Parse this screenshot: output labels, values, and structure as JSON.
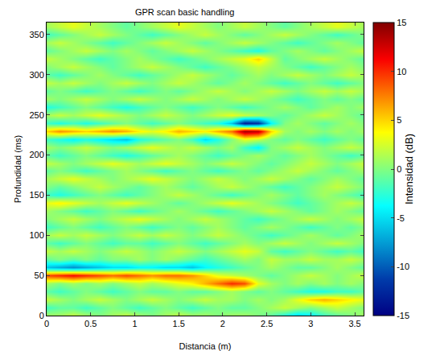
{
  "chart_data": {
    "type": "heatmap",
    "title": "GPR scan basic handling",
    "x_label": "Distancia (m)",
    "y_label": "Profundidad (ms)",
    "color": "Jet",
    "xlim": [
      0,
      3.6
    ],
    "ylim": [
      0,
      365
    ],
    "xticks": [
      0,
      0.5,
      1,
      1.5,
      2,
      2.5,
      3,
      3.5
    ],
    "yticks": [
      0,
      50,
      100,
      150,
      200,
      250,
      300,
      350
    ],
    "colorbar": {
      "title": "Intensidad (dB)",
      "range": [
        -15,
        15
      ],
      "ticks": [
        -15,
        -10,
        -5,
        0,
        5,
        10,
        15
      ]
    },
    "x": [
      0,
      0.15,
      0.3,
      0.45,
      0.6,
      0.75,
      0.9,
      1.05,
      1.2,
      1.35,
      1.5,
      1.65,
      1.8,
      1.95,
      2.1,
      2.25,
      2.4,
      2.55,
      2.7,
      2.85,
      3.0,
      3.15,
      3.3,
      3.45,
      3.6
    ],
    "y": [
      0,
      10,
      20,
      30,
      40,
      50,
      60,
      70,
      80,
      90,
      100,
      110,
      120,
      130,
      140,
      150,
      160,
      170,
      180,
      190,
      200,
      210,
      220,
      230,
      240,
      250,
      260,
      270,
      280,
      290,
      300,
      310,
      320,
      330,
      340,
      350,
      360
    ],
    "z": [
      [
        1,
        1,
        2,
        1,
        0,
        1,
        2,
        1,
        0,
        1,
        2,
        1,
        1,
        0,
        1,
        1,
        0,
        -1,
        -3,
        -5,
        -4,
        -2,
        -1,
        0,
        1
      ],
      [
        -2,
        -1,
        -1,
        -2,
        -1,
        0,
        -1,
        -2,
        -1,
        0,
        -1,
        -2,
        -1,
        0,
        -1,
        -1,
        0,
        1,
        2,
        1,
        0,
        1,
        2,
        1,
        0
      ],
      [
        2,
        1,
        0,
        1,
        2,
        1,
        0,
        1,
        2,
        1,
        0,
        1,
        2,
        1,
        1,
        0,
        1,
        0,
        1,
        3,
        5,
        6,
        5,
        4,
        3
      ],
      [
        -1,
        -2,
        -1,
        0,
        -1,
        -2,
        -1,
        0,
        -1,
        -1,
        0,
        -1,
        -1,
        0,
        1,
        0,
        -1,
        0,
        -1,
        -2,
        -3,
        -3,
        -2,
        -2,
        -1
      ],
      [
        1,
        0,
        1,
        0,
        1,
        0,
        1,
        2,
        1,
        2,
        3,
        4,
        6,
        8,
        10,
        9,
        3,
        1,
        0,
        1,
        0,
        1,
        0,
        1,
        0
      ],
      [
        9,
        10,
        11,
        10,
        9,
        8,
        9,
        8,
        7,
        8,
        8,
        7,
        5,
        3,
        2,
        1,
        0,
        -1,
        0,
        1,
        2,
        1,
        0,
        1,
        2
      ],
      [
        -6,
        -7,
        -8,
        -7,
        -6,
        -5,
        -5,
        -4,
        -4,
        -5,
        -5,
        -6,
        -4,
        -3,
        -2,
        -1,
        0,
        1,
        0,
        -1,
        -1,
        0,
        1,
        0,
        -1
      ],
      [
        -1,
        0,
        -1,
        0,
        -1,
        0,
        0,
        1,
        0,
        1,
        0,
        -1,
        -2,
        -1,
        0,
        1,
        0,
        2,
        1,
        1,
        2,
        1,
        1,
        2,
        1
      ],
      [
        2,
        1,
        2,
        1,
        0,
        1,
        2,
        1,
        0,
        1,
        2,
        1,
        0,
        1,
        2,
        3,
        2,
        -1,
        -2,
        -1,
        0,
        -1,
        -2,
        -1,
        -2
      ],
      [
        -1,
        -2,
        -1,
        0,
        -1,
        -2,
        -1,
        -1,
        -2,
        -1,
        0,
        -1,
        -2,
        -1,
        0,
        1,
        0,
        1,
        2,
        1,
        0,
        1,
        2,
        1,
        0
      ],
      [
        1,
        2,
        1,
        2,
        1,
        0,
        1,
        2,
        1,
        2,
        1,
        0,
        1,
        2,
        1,
        0,
        -1,
        -2,
        -1,
        0,
        1,
        0,
        -1,
        0,
        1
      ],
      [
        -2,
        -1,
        0,
        -1,
        -2,
        -1,
        0,
        -1,
        -2,
        -1,
        0,
        -1,
        0,
        1,
        0,
        -1,
        0,
        1,
        0,
        -1,
        -2,
        -1,
        0,
        -1,
        0
      ],
      [
        0,
        1,
        2,
        1,
        0,
        1,
        2,
        3,
        2,
        1,
        0,
        1,
        2,
        1,
        0,
        -1,
        -2,
        -1,
        0,
        1,
        2,
        1,
        0,
        1,
        2
      ],
      [
        1,
        0,
        -1,
        -2,
        -1,
        0,
        -1,
        -2,
        -1,
        0,
        1,
        0,
        -1,
        -2,
        -1,
        0,
        1,
        2,
        1,
        0,
        -1,
        0,
        1,
        0,
        -1
      ],
      [
        3,
        4,
        3,
        2,
        1,
        2,
        3,
        2,
        1,
        0,
        -1,
        0,
        1,
        2,
        3,
        2,
        1,
        0,
        -1,
        -2,
        -1,
        0,
        1,
        2,
        1
      ],
      [
        -2,
        -3,
        -2,
        -1,
        0,
        -1,
        -2,
        -1,
        0,
        1,
        2,
        1,
        0,
        -1,
        -2,
        -1,
        0,
        1,
        0,
        -1,
        0,
        1,
        0,
        -1,
        -2
      ],
      [
        0,
        -1,
        0,
        1,
        2,
        1,
        0,
        -1,
        0,
        1,
        0,
        -1,
        0,
        1,
        2,
        1,
        0,
        -1,
        -2,
        -1,
        0,
        1,
        2,
        1,
        0
      ],
      [
        1,
        2,
        3,
        2,
        1,
        0,
        1,
        2,
        3,
        2,
        1,
        0,
        1,
        2,
        1,
        0,
        1,
        2,
        1,
        0,
        -1,
        0,
        1,
        0,
        -1
      ],
      [
        -1,
        0,
        -1,
        -2,
        -1,
        0,
        1,
        0,
        -1,
        -2,
        -1,
        0,
        -1,
        -2,
        -1,
        0,
        -1,
        0,
        1,
        2,
        1,
        0,
        -1,
        0,
        1
      ],
      [
        2,
        1,
        0,
        1,
        2,
        3,
        2,
        1,
        2,
        3,
        2,
        1,
        0,
        1,
        2,
        1,
        0,
        -1,
        0,
        1,
        2,
        1,
        0,
        1,
        2
      ],
      [
        -1,
        -2,
        -1,
        0,
        -1,
        -2,
        -3,
        -2,
        -1,
        0,
        1,
        0,
        -1,
        -2,
        -1,
        0,
        1,
        0,
        -1,
        0,
        1,
        0,
        -1,
        -2,
        -1
      ],
      [
        1,
        0,
        1,
        2,
        1,
        0,
        1,
        2,
        3,
        2,
        1,
        2,
        1,
        0,
        1,
        -2,
        -4,
        0,
        1,
        2,
        1,
        0,
        1,
        2,
        1
      ],
      [
        -2,
        -3,
        -4,
        -3,
        -4,
        -5,
        -6,
        -3,
        -2,
        -1,
        0,
        -2,
        -5,
        -3,
        0,
        3,
        2,
        0,
        -1,
        0,
        -1,
        -2,
        -1,
        0,
        -1
      ],
      [
        5,
        7,
        6,
        5,
        6,
        7,
        6,
        4,
        3,
        4,
        6,
        5,
        4,
        6,
        8,
        14,
        13,
        5,
        1,
        0,
        1,
        0,
        1,
        0,
        1
      ],
      [
        -2,
        -3,
        -2,
        -3,
        -2,
        -1,
        0,
        -1,
        -2,
        -1,
        0,
        -1,
        -2,
        -3,
        -6,
        -13,
        -12,
        -4,
        0,
        1,
        0,
        -1,
        0,
        1,
        0
      ],
      [
        1,
        2,
        1,
        2,
        3,
        2,
        1,
        0,
        1,
        2,
        1,
        0,
        1,
        2,
        3,
        2,
        1,
        0,
        -1,
        0,
        1,
        2,
        1,
        0,
        -1
      ],
      [
        -3,
        -2,
        -1,
        0,
        -1,
        -2,
        -3,
        -2,
        -1,
        0,
        -1,
        -2,
        -1,
        0,
        -1,
        -2,
        -1,
        0,
        1,
        0,
        -1,
        0,
        1,
        0,
        1
      ],
      [
        1,
        0,
        1,
        2,
        1,
        0,
        1,
        2,
        1,
        0,
        1,
        2,
        1,
        0,
        1,
        2,
        1,
        0,
        -1,
        -2,
        -1,
        0,
        -1,
        0,
        -1
      ],
      [
        -1,
        0,
        -1,
        -2,
        -1,
        0,
        -1,
        -2,
        -1,
        0,
        -1,
        0,
        1,
        2,
        1,
        0,
        1,
        2,
        1,
        0,
        1,
        2,
        1,
        2,
        1
      ],
      [
        2,
        1,
        2,
        1,
        0,
        1,
        2,
        1,
        0,
        1,
        2,
        1,
        0,
        -1,
        0,
        1,
        0,
        -1,
        -2,
        -1,
        0,
        -1,
        -2,
        -1,
        0
      ],
      [
        -1,
        -2,
        -1,
        0,
        1,
        0,
        -1,
        -2,
        -1,
        0,
        1,
        2,
        1,
        0,
        -1,
        0,
        1,
        0,
        1,
        2,
        1,
        0,
        1,
        2,
        1
      ],
      [
        0,
        1,
        2,
        1,
        0,
        -1,
        0,
        1,
        2,
        1,
        0,
        -1,
        -2,
        -1,
        0,
        1,
        2,
        1,
        0,
        -1,
        -2,
        -1,
        0,
        1,
        0
      ],
      [
        2,
        1,
        0,
        -1,
        -2,
        -1,
        0,
        1,
        0,
        -1,
        -2,
        -1,
        0,
        1,
        2,
        3,
        5,
        2,
        -1,
        0,
        1,
        2,
        1,
        0,
        -1
      ],
      [
        -1,
        0,
        1,
        2,
        1,
        0,
        1,
        0,
        -1,
        0,
        1,
        2,
        1,
        0,
        -1,
        -2,
        -3,
        -1,
        0,
        1,
        0,
        -1,
        0,
        1,
        2
      ],
      [
        1,
        2,
        1,
        0,
        -1,
        -2,
        -1,
        0,
        1,
        2,
        1,
        0,
        -1,
        0,
        1,
        2,
        1,
        0,
        -1,
        -2,
        -1,
        0,
        1,
        0,
        -1
      ],
      [
        -2,
        -1,
        0,
        1,
        2,
        1,
        0,
        -1,
        -2,
        -1,
        0,
        1,
        2,
        1,
        0,
        -1,
        0,
        1,
        2,
        1,
        0,
        -1,
        -2,
        -1,
        0
      ],
      [
        1,
        2,
        3,
        2,
        1,
        0,
        -1,
        0,
        1,
        2,
        3,
        2,
        1,
        0,
        1,
        2,
        1,
        0,
        -1,
        0,
        1,
        2,
        3,
        2,
        1
      ]
    ]
  }
}
